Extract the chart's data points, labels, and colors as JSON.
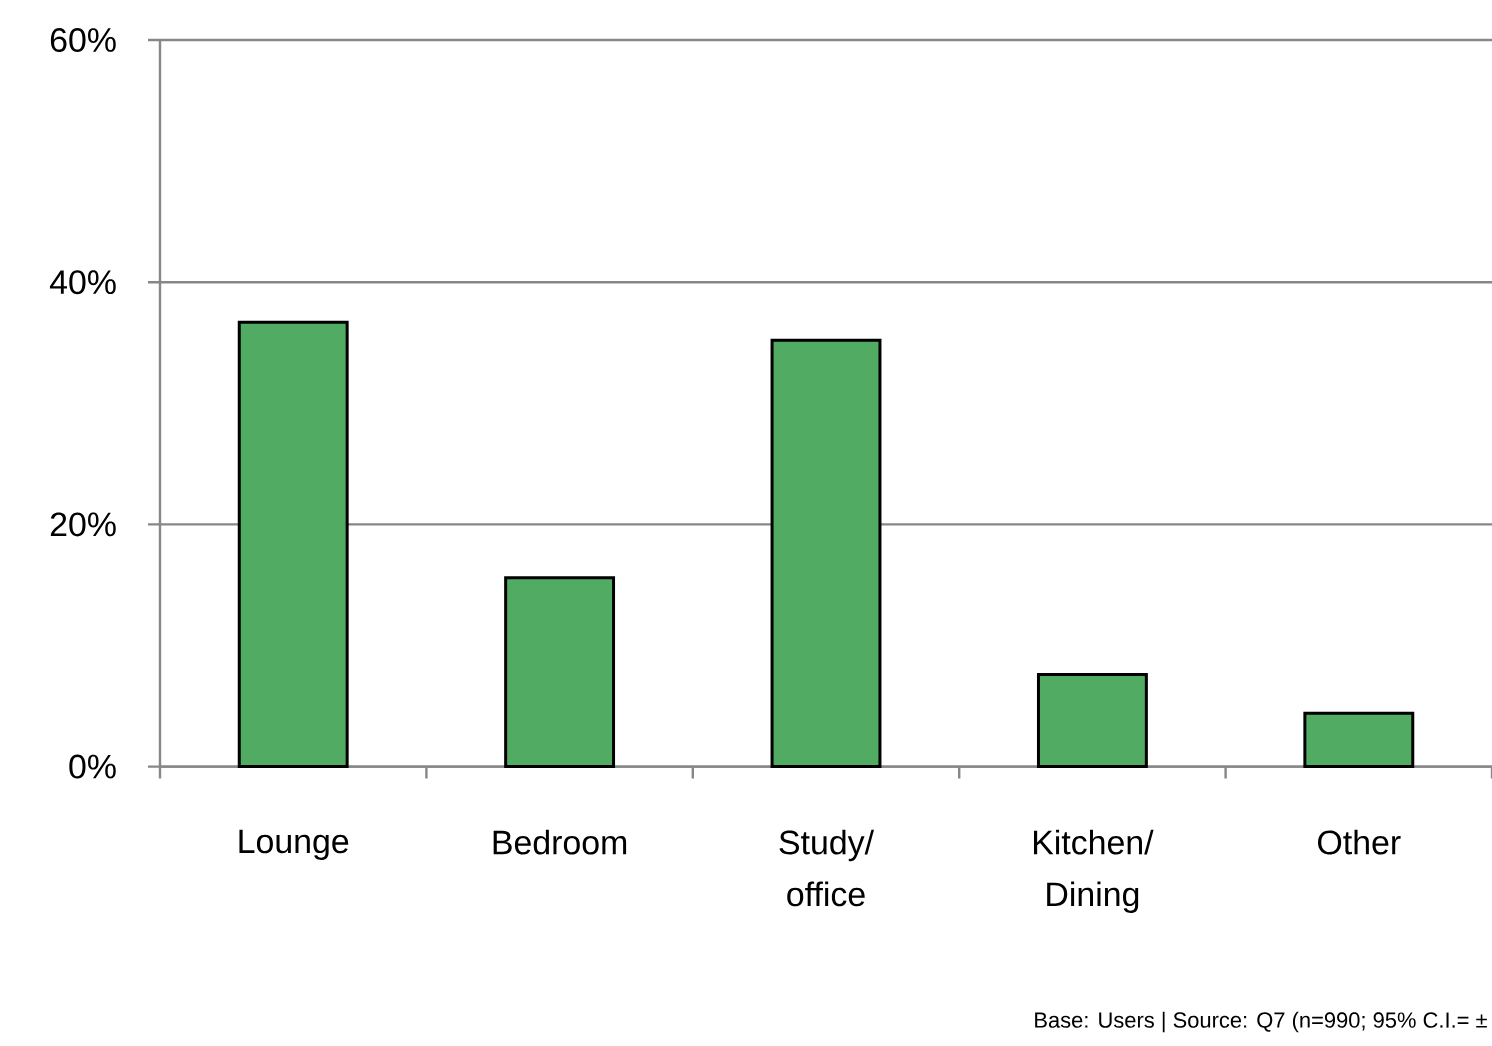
{
  "chart_data": {
    "type": "bar",
    "categories": [
      "Lounge",
      "Bedroom",
      "Study/ office",
      "Kitchen/ Dining",
      "Other"
    ],
    "values": [
      36.7,
      15.6,
      35.2,
      7.6,
      4.4
    ],
    "color": "#52ab62",
    "ylim": [
      0,
      60
    ],
    "yticks": [
      {
        "value": 0,
        "label": "0%"
      },
      {
        "value": 20,
        "label": "20%"
      },
      {
        "value": 40,
        "label": "40%"
      },
      {
        "value": 60,
        "label": "60%"
      }
    ],
    "grid": "y",
    "annotations": [
      "Base: Users | Source: Q7 (n=990; 95% C.I.= ±"
    ]
  }
}
